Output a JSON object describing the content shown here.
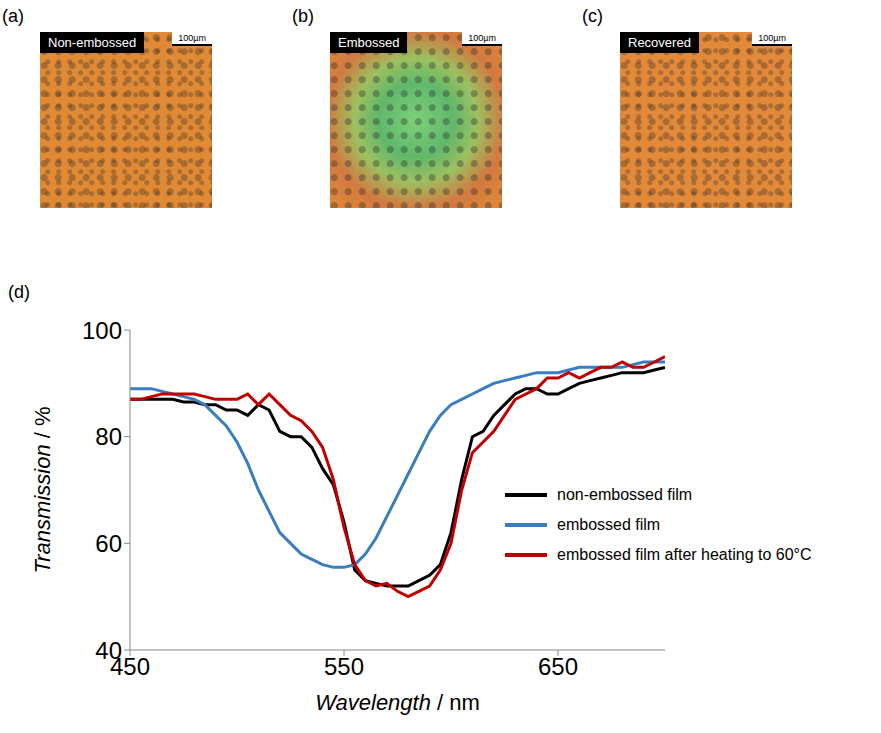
{
  "image_panels": [
    {
      "letter": "(a)",
      "label": "Non-embossed",
      "scale_bar": "100µm"
    },
    {
      "letter": "(b)",
      "label": "Embossed",
      "scale_bar": "100µm"
    },
    {
      "letter": "(c)",
      "label": "Recovered",
      "scale_bar": "100µm"
    }
  ],
  "chart_panel": "(d)",
  "chart_data": {
    "type": "line",
    "x_label": "Wavelength / nm",
    "y_label": "Transmission / %",
    "x": [
      450,
      455,
      460,
      465,
      470,
      475,
      480,
      485,
      490,
      495,
      500,
      505,
      510,
      515,
      520,
      525,
      530,
      535,
      540,
      545,
      550,
      555,
      560,
      565,
      570,
      575,
      580,
      585,
      590,
      595,
      600,
      605,
      610,
      615,
      620,
      625,
      630,
      635,
      640,
      645,
      650,
      655,
      660,
      665,
      670,
      675,
      680,
      685,
      690,
      695,
      700
    ],
    "series": [
      {
        "name": "non-embossed film",
        "color": "#000000",
        "values": [
          87,
          87,
          87,
          87,
          87,
          86.5,
          86.5,
          86,
          86,
          85,
          85,
          84,
          86,
          85,
          81,
          80,
          80,
          78,
          74,
          71,
          64,
          55,
          53,
          52.5,
          52,
          52,
          52,
          53,
          54,
          56,
          62,
          72,
          80,
          81,
          84,
          86,
          88,
          89,
          89,
          88,
          88,
          89,
          90,
          90.5,
          91,
          91.5,
          92,
          92,
          92,
          92.5,
          93
        ]
      },
      {
        "name": "embossed film",
        "color": "#3a7dc0",
        "values": [
          89,
          89,
          89,
          88.5,
          88,
          87.5,
          87,
          86,
          84,
          82,
          79,
          75,
          70,
          66,
          62,
          60,
          58,
          57,
          56,
          55.5,
          55.5,
          56,
          58,
          61,
          65,
          69,
          73,
          77,
          81,
          84,
          86,
          87,
          88,
          89,
          90,
          90.5,
          91,
          91.5,
          92,
          92,
          92,
          92.5,
          93,
          93,
          93,
          93,
          93,
          93.5,
          94,
          94,
          94
        ]
      },
      {
        "name": "embossed film after heating to 60°C",
        "color": "#c00000",
        "values": [
          87,
          87,
          87.5,
          88,
          88,
          88,
          88,
          87.5,
          87,
          87,
          87,
          88,
          86,
          88,
          86,
          84,
          83,
          81,
          78,
          72,
          63,
          56,
          53,
          52,
          52.5,
          51,
          50,
          51,
          52,
          55,
          60,
          70,
          77,
          79,
          81,
          84,
          87,
          88,
          89,
          91,
          91,
          92,
          91,
          92,
          93,
          93,
          94,
          93,
          93,
          94,
          95
        ]
      }
    ],
    "xlim": [
      450,
      700
    ],
    "xticks": [
      450,
      550,
      650
    ],
    "ylim": [
      40,
      100
    ],
    "yticks": [
      40,
      60,
      80,
      100
    ],
    "grid": false,
    "legend": "right"
  }
}
